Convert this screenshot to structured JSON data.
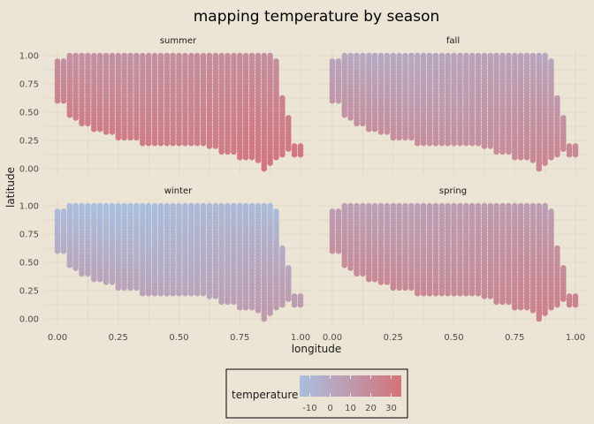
{
  "chart_data": {
    "type": "scatter",
    "title": "mapping temperature by season",
    "xlabel": "longitude",
    "ylabel": "latitude",
    "xlim": [
      0,
      1
    ],
    "ylim": [
      0,
      1
    ],
    "x_ticks": [
      "0.00",
      "0.25",
      "0.50",
      "0.75",
      "1.00"
    ],
    "y_ticks": [
      "0.00",
      "0.25",
      "0.50",
      "0.75",
      "1.00"
    ],
    "grid": true,
    "facets": [
      "summer",
      "fall",
      "winter",
      "spring"
    ],
    "facet_temperature_range": {
      "summer": [
        15,
        35
      ],
      "fall": [
        0,
        25
      ],
      "winter": [
        -15,
        12
      ],
      "spring": [
        5,
        28
      ]
    },
    "grid_spacing": 0.025,
    "legend": {
      "title": "temperature",
      "placement": "bottom",
      "ticks": [
        "-10",
        "0",
        "10",
        "20",
        "30"
      ],
      "range": [
        -15,
        35
      ],
      "low_color": "#A9BFE0",
      "high_color": "#D4737A"
    }
  }
}
